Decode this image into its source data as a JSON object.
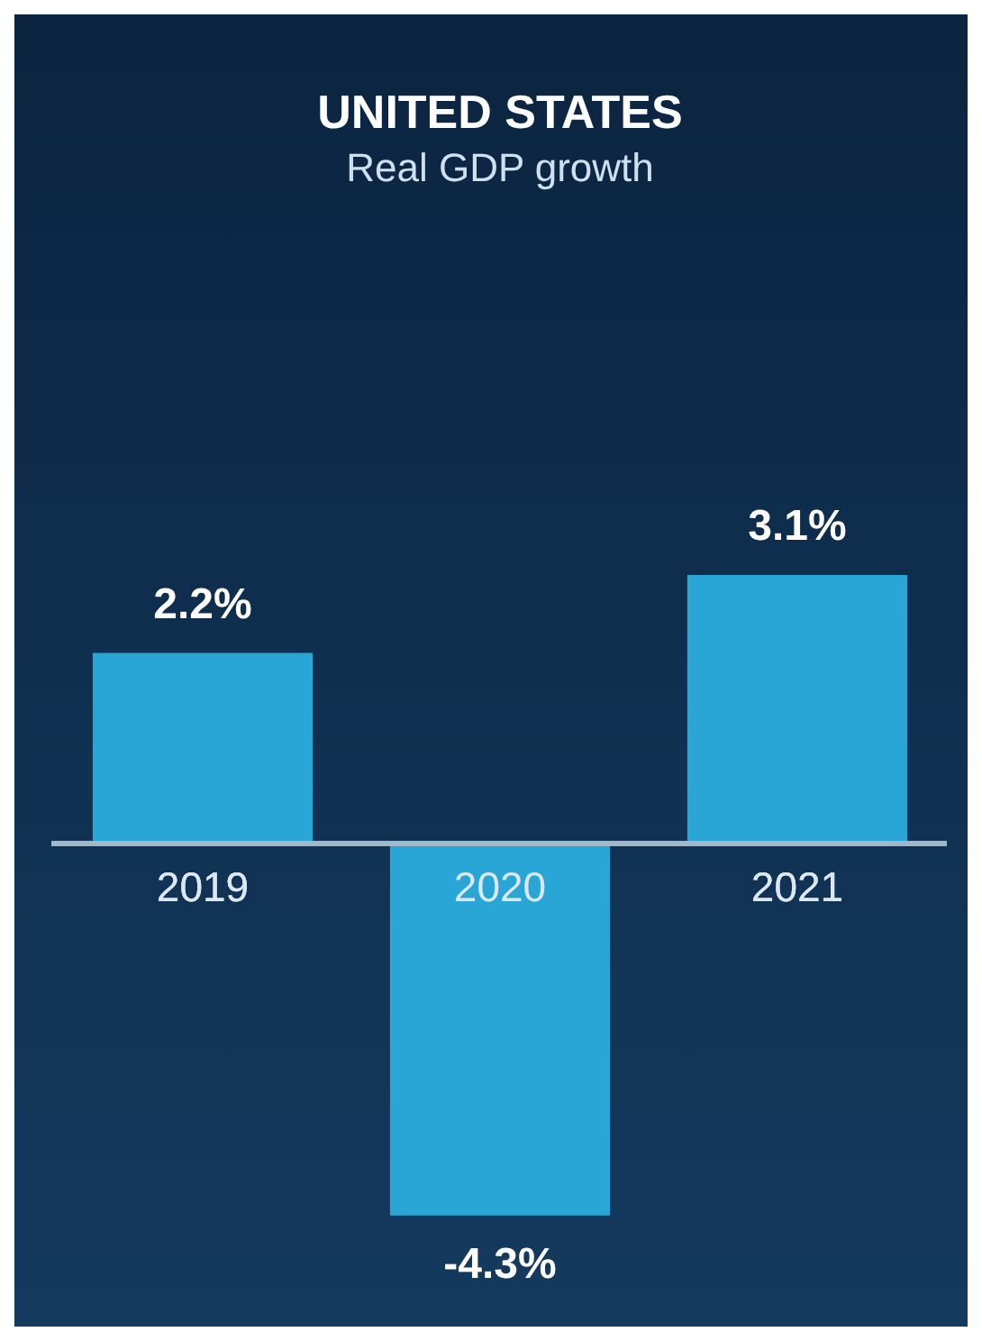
{
  "chart_data": {
    "type": "bar",
    "title": "UNITED STATES",
    "subtitle": "Real GDP growth",
    "categories": [
      "2019",
      "2020",
      "2021"
    ],
    "values": [
      2.2,
      -4.3,
      3.1
    ],
    "color": "#2aa6d6",
    "value_labels": [
      "2.2%",
      "-4.3%",
      "3.1%"
    ]
  }
}
